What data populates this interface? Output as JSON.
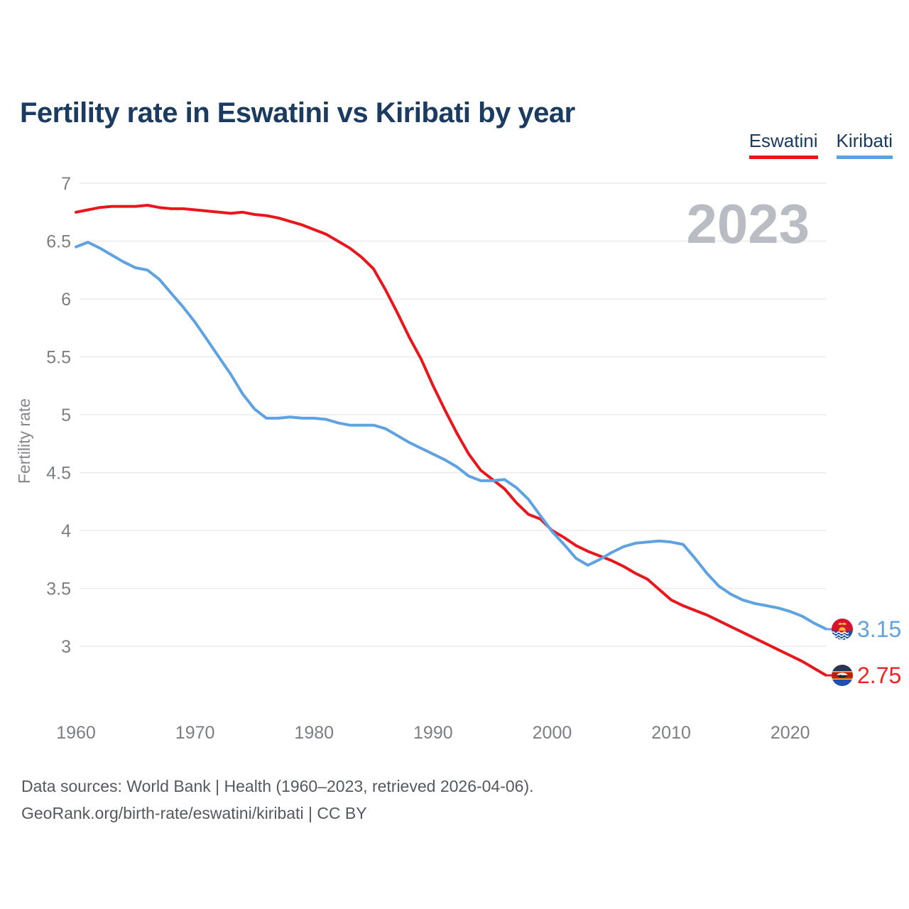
{
  "title": "Fertility rate in Eswatini vs Kiribati by year",
  "watermark": "2023",
  "legend": [
    {
      "label": "Eswatini",
      "color": "#e9161c"
    },
    {
      "label": "Kiribati",
      "color": "#5fa2e2"
    }
  ],
  "footer": {
    "line1": "Data sources: World Bank | Health (1960–2023, retrieved 2026-04-06).",
    "line2": "GeoRank.org/birth-rate/eswatini/kiribati | CC BY"
  },
  "chart_data": {
    "type": "line",
    "title": "Fertility rate in Eswatini vs Kiribati by year",
    "xlabel": "",
    "ylabel": "Fertility rate",
    "grid": true,
    "legend_position": "top-right",
    "ylim": [
      2.6,
      7.0
    ],
    "xlim": [
      1960,
      2023
    ],
    "yticks": [
      7,
      6.5,
      6,
      5.5,
      5,
      4.5,
      4,
      3.5,
      3
    ],
    "xticks": [
      1960,
      1970,
      1980,
      1990,
      2000,
      2010,
      2020
    ],
    "x": [
      1960,
      1961,
      1962,
      1963,
      1964,
      1965,
      1966,
      1967,
      1968,
      1969,
      1970,
      1971,
      1972,
      1973,
      1974,
      1975,
      1976,
      1977,
      1978,
      1979,
      1980,
      1981,
      1982,
      1983,
      1984,
      1985,
      1986,
      1987,
      1988,
      1989,
      1990,
      1991,
      1992,
      1993,
      1994,
      1995,
      1996,
      1997,
      1998,
      1999,
      2000,
      2001,
      2002,
      2003,
      2004,
      2005,
      2006,
      2007,
      2008,
      2009,
      2010,
      2011,
      2012,
      2013,
      2014,
      2015,
      2016,
      2017,
      2018,
      2019,
      2020,
      2021,
      2022,
      2023
    ],
    "series": [
      {
        "name": "Eswatini",
        "color": "#e9161c",
        "values": [
          6.75,
          6.77,
          6.79,
          6.8,
          6.8,
          6.8,
          6.81,
          6.79,
          6.78,
          6.78,
          6.77,
          6.76,
          6.75,
          6.74,
          6.75,
          6.73,
          6.72,
          6.7,
          6.67,
          6.64,
          6.6,
          6.56,
          6.5,
          6.44,
          6.36,
          6.26,
          6.08,
          5.88,
          5.67,
          5.48,
          5.25,
          5.04,
          4.84,
          4.66,
          4.52,
          4.44,
          4.36,
          4.24,
          4.14,
          4.1,
          4.0,
          3.94,
          3.87,
          3.82,
          3.78,
          3.74,
          3.69,
          3.63,
          3.58,
          3.49,
          3.4,
          3.35,
          3.31,
          3.27,
          3.22,
          3.17,
          3.12,
          3.07,
          3.02,
          2.97,
          2.92,
          2.87,
          2.81,
          2.75
        ]
      },
      {
        "name": "Kiribati",
        "color": "#5fa2e2",
        "values": [
          6.45,
          6.49,
          6.44,
          6.38,
          6.32,
          6.27,
          6.25,
          6.17,
          6.05,
          5.93,
          5.8,
          5.65,
          5.5,
          5.35,
          5.18,
          5.05,
          4.97,
          4.97,
          4.98,
          4.97,
          4.97,
          4.96,
          4.93,
          4.91,
          4.91,
          4.91,
          4.88,
          4.82,
          4.76,
          4.71,
          4.66,
          4.61,
          4.55,
          4.47,
          4.43,
          4.43,
          4.44,
          4.37,
          4.27,
          4.13,
          3.99,
          3.88,
          3.76,
          3.7,
          3.75,
          3.81,
          3.86,
          3.89,
          3.9,
          3.91,
          3.9,
          3.88,
          3.76,
          3.63,
          3.52,
          3.45,
          3.4,
          3.37,
          3.35,
          3.33,
          3.3,
          3.26,
          3.2,
          3.15
        ]
      }
    ],
    "end_labels": [
      {
        "name": "Kiribati",
        "value": "3.15",
        "color": "#5fa2e2"
      },
      {
        "name": "Eswatini",
        "value": "2.75",
        "color": "#ee2222"
      }
    ]
  }
}
